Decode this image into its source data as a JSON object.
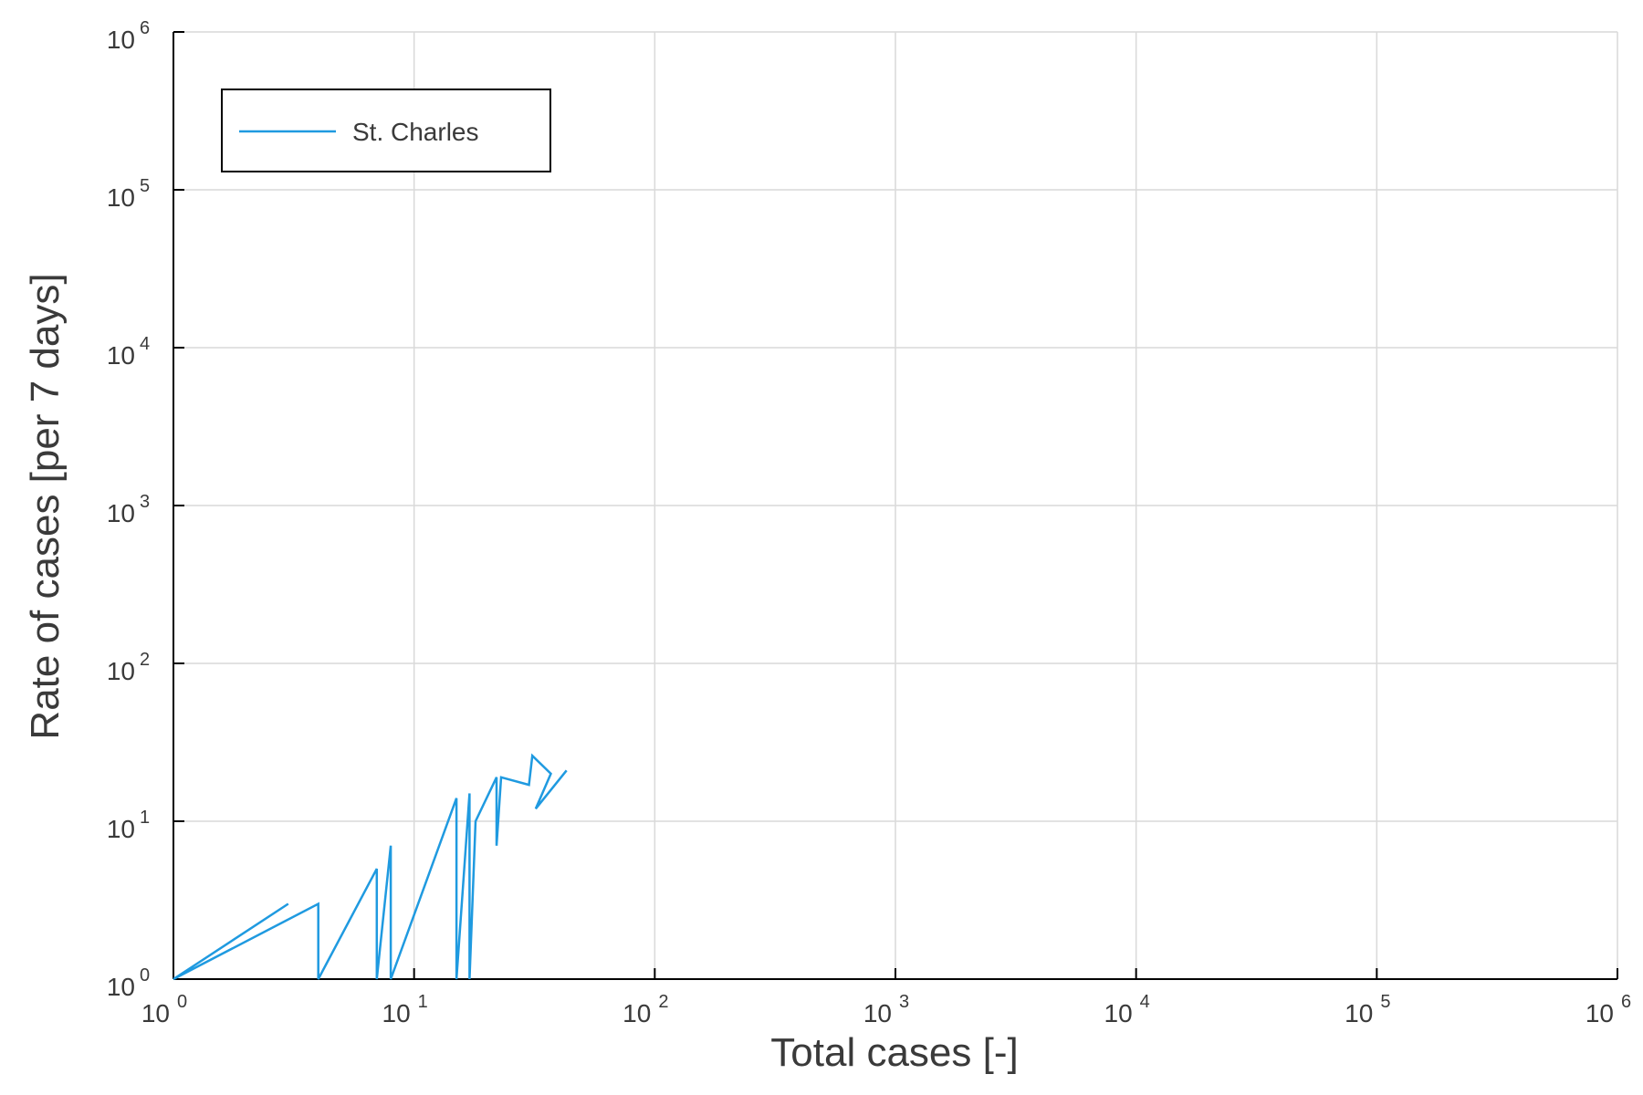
{
  "chart_data": {
    "type": "line",
    "xlabel": "Total cases [-]",
    "ylabel": "Rate of cases [per 7 days]",
    "xscale": "log",
    "yscale": "log",
    "xlim": [
      1,
      1000000
    ],
    "ylim": [
      1,
      1000000
    ],
    "grid": true,
    "legend_position": "top-left",
    "x_ticks": [
      {
        "base": "10",
        "exp": "0",
        "value": 1
      },
      {
        "base": "10",
        "exp": "1",
        "value": 10
      },
      {
        "base": "10",
        "exp": "2",
        "value": 100
      },
      {
        "base": "10",
        "exp": "3",
        "value": 1000
      },
      {
        "base": "10",
        "exp": "4",
        "value": 10000
      },
      {
        "base": "10",
        "exp": "5",
        "value": 100000
      },
      {
        "base": "10",
        "exp": "6",
        "value": 1000000
      }
    ],
    "y_ticks": [
      {
        "base": "10",
        "exp": "0",
        "value": 1
      },
      {
        "base": "10",
        "exp": "1",
        "value": 10
      },
      {
        "base": "10",
        "exp": "2",
        "value": 100
      },
      {
        "base": "10",
        "exp": "3",
        "value": 1000
      },
      {
        "base": "10",
        "exp": "4",
        "value": 10000
      },
      {
        "base": "10",
        "exp": "5",
        "value": 100000
      },
      {
        "base": "10",
        "exp": "6",
        "value": 1000000
      }
    ],
    "series": [
      {
        "name": "St. Charles",
        "color": "#1f9ae0",
        "x": [
          1,
          3,
          1,
          4,
          4,
          7,
          7,
          8,
          8,
          15,
          15,
          17,
          17,
          18,
          22,
          22,
          23,
          30,
          31,
          37,
          32,
          43
        ],
        "y": [
          1,
          3,
          1,
          3,
          1,
          5,
          1,
          7,
          1,
          14,
          1,
          15,
          1,
          10,
          19,
          7,
          19,
          17,
          26,
          20,
          12,
          21
        ]
      }
    ]
  }
}
